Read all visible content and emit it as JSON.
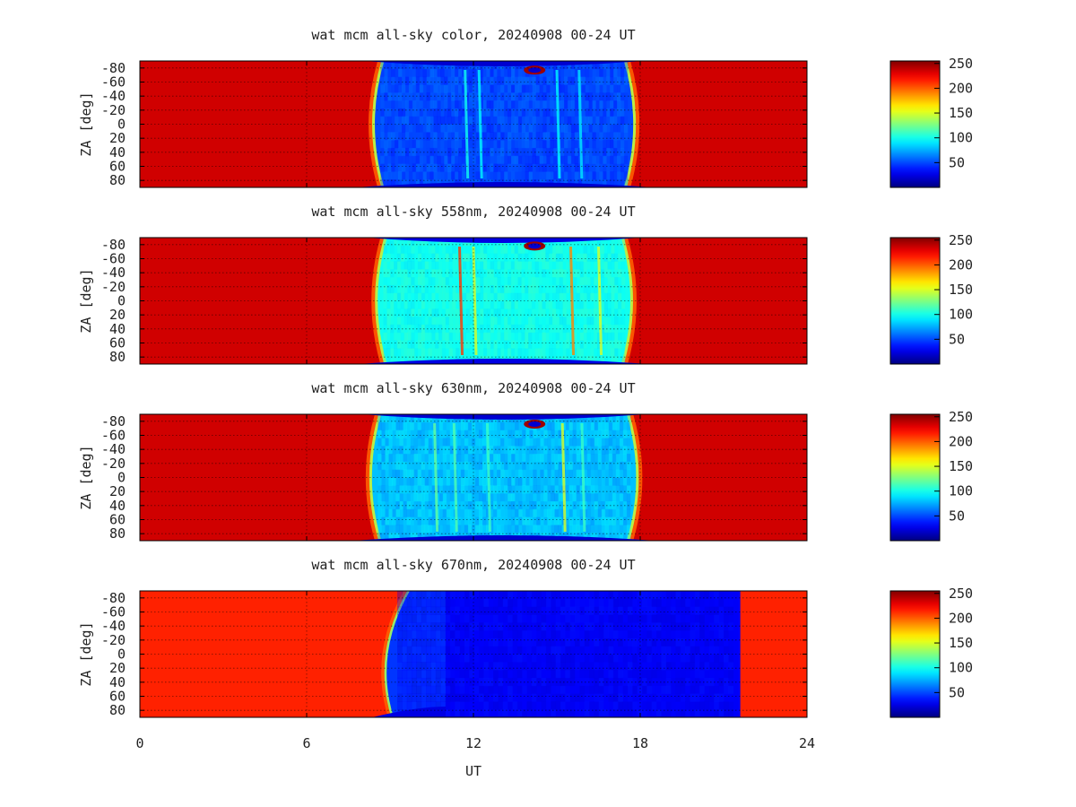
{
  "chart_data": {
    "type": "heatmap",
    "x_axis": {
      "label": "UT",
      "range": [
        0,
        24
      ],
      "ticks": [
        0,
        6,
        12,
        18,
        24
      ],
      "tick_labels": [
        "0",
        "6",
        "12",
        "18",
        "24"
      ]
    },
    "y_axis": {
      "label": "ZA [deg]",
      "range": [
        -90,
        90
      ],
      "tick_labels": [
        "-80",
        "-60",
        "-40",
        "-20",
        "0",
        "20",
        "40",
        "60",
        "80"
      ]
    },
    "colorbar": {
      "range": [
        0,
        255
      ],
      "ticks": [
        50,
        100,
        150,
        200,
        250
      ],
      "tick_labels": [
        "50",
        "100",
        "150",
        "200",
        "250"
      ],
      "colormap": "jet"
    },
    "panels": [
      {
        "title": "wat mcm all-sky color, 20240908 00-24 UT",
        "background_level": 235,
        "night_start_ut": 8.4,
        "night_end_ut": 17.8,
        "night_level": 50,
        "night_level_spread": 18,
        "limb_level": 20,
        "streaks": [
          {
            "ut": 11.7,
            "level": 100
          },
          {
            "ut": 12.2,
            "level": 95
          },
          {
            "ut": 15.0,
            "level": 95
          },
          {
            "ut": 15.8,
            "level": 90
          }
        ],
        "spot": {
          "ut": 14.2,
          "za": -77,
          "level": 248
        }
      },
      {
        "title": "wat mcm all-sky 558nm, 20240908 00-24 UT",
        "background_level": 235,
        "night_start_ut": 8.5,
        "night_end_ut": 17.7,
        "night_level": 100,
        "night_level_spread": 15,
        "limb_level": 25,
        "streaks": [
          {
            "ut": 11.5,
            "level": 210
          },
          {
            "ut": 12.0,
            "level": 150
          },
          {
            "ut": 15.5,
            "level": 190
          },
          {
            "ut": 16.5,
            "level": 150
          }
        ],
        "spot": {
          "ut": 14.2,
          "za": -78,
          "level": 248
        }
      },
      {
        "title": "wat mcm all-sky 630nm, 20240908 00-24 UT",
        "background_level": 235,
        "night_start_ut": 8.3,
        "night_end_ut": 17.9,
        "night_level": 80,
        "night_level_spread": 20,
        "limb_level": 20,
        "streaks": [
          {
            "ut": 10.6,
            "level": 120
          },
          {
            "ut": 11.3,
            "level": 115
          },
          {
            "ut": 12.5,
            "level": 110
          },
          {
            "ut": 15.2,
            "level": 150
          },
          {
            "ut": 15.9,
            "level": 110
          }
        ],
        "spot": {
          "ut": 14.2,
          "za": -76,
          "level": 248
        }
      },
      {
        "title": "wat mcm all-sky 670nm, 20240908 00-24 UT",
        "background_level": 215,
        "night_start_ut": 9.0,
        "night_end_ut": 21.6,
        "night_level": 30,
        "night_level_spread": 10,
        "limb_level": 25,
        "streaks": [],
        "block_ut": 11.0,
        "block_level": 30
      }
    ]
  }
}
